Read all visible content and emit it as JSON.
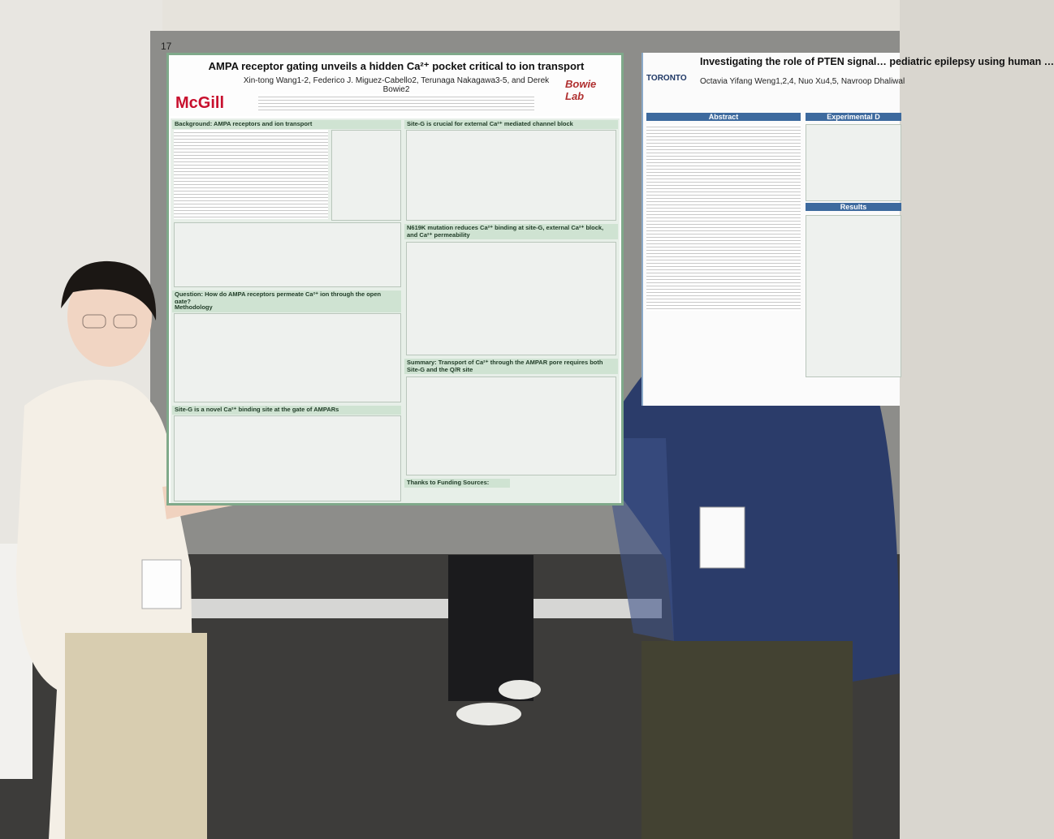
{
  "board_number": "17",
  "left_poster": {
    "title": "AMPA receptor gating unveils a hidden Ca²⁺ pocket critical to ion transport",
    "authors": "Xin-tong Wang1-2, Federico J. Miguez-Cabello2, Terunaga Nakagawa3-5, and Derek Bowie2",
    "logo": "McGill",
    "lab_logo": "Bowie Lab",
    "sections": [
      "Background: AMPA receptors and ion transport",
      "Question: How do AMPA receptors permeate Ca²⁺ ion through the open gate?",
      "Methodology",
      "Site-G is a novel Ca²⁺ binding site at the gate of AMPARs",
      "Site-G is crucial for external Ca²⁺ mediated channel block",
      "N619K mutation reduces Ca²⁺ binding at site-G, external Ca²⁺ block, and Ca²⁺ permeability",
      "Summary: Transport of Ca²⁺ through the AMPAR pore requires both Site-G and the Q/R site",
      "Thanks to Funding Sources:"
    ]
  },
  "right_poster": {
    "title": "Investigating the role of PTEN signal… pediatric epilepsy using human …",
    "authors": "Octavia Yifang Weng1,2,4, Nuo Xu4,5, Navroop Dhaliwal",
    "logo": "TORONTO",
    "sections": [
      "Abstract",
      "Experimental D",
      "Results"
    ]
  }
}
